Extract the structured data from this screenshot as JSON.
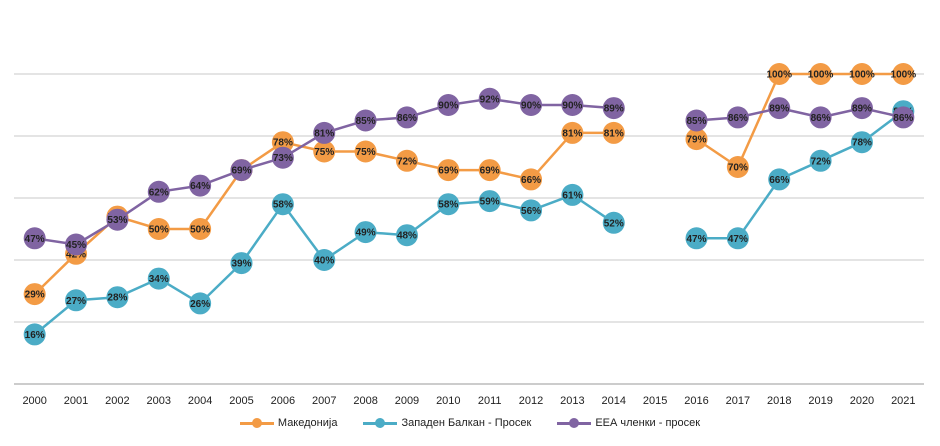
{
  "chart_data": {
    "type": "line",
    "categories": [
      "2000",
      "2001",
      "2002",
      "2003",
      "2004",
      "2005",
      "2006",
      "2007",
      "2008",
      "2009",
      "2010",
      "2011",
      "2012",
      "2013",
      "2014",
      "2015",
      "2016",
      "2017",
      "2018",
      "2019",
      "2020",
      "2021"
    ],
    "ylim": [
      0,
      100
    ],
    "grid": true,
    "legend": "bottom",
    "series": [
      {
        "name": "Македонија",
        "color": "#f39b45",
        "values": [
          29,
          42,
          54,
          50,
          50,
          69,
          78,
          75,
          75,
          72,
          69,
          69,
          66,
          81,
          81,
          null,
          79,
          70,
          100,
          100,
          100,
          100
        ]
      },
      {
        "name": "Западен Балкан - Просек",
        "color": "#4bacc6",
        "values": [
          16,
          27,
          28,
          34,
          26,
          39,
          58,
          40,
          49,
          48,
          58,
          59,
          56,
          61,
          52,
          null,
          47,
          47,
          66,
          72,
          78,
          88
        ]
      },
      {
        "name": "ЕЕА членки - просек",
        "color": "#8064a2",
        "values": [
          47,
          45,
          53,
          62,
          64,
          69,
          73,
          81,
          85,
          86,
          90,
          92,
          90,
          90,
          89,
          null,
          85,
          86,
          89,
          86,
          89,
          86
        ]
      }
    ]
  }
}
